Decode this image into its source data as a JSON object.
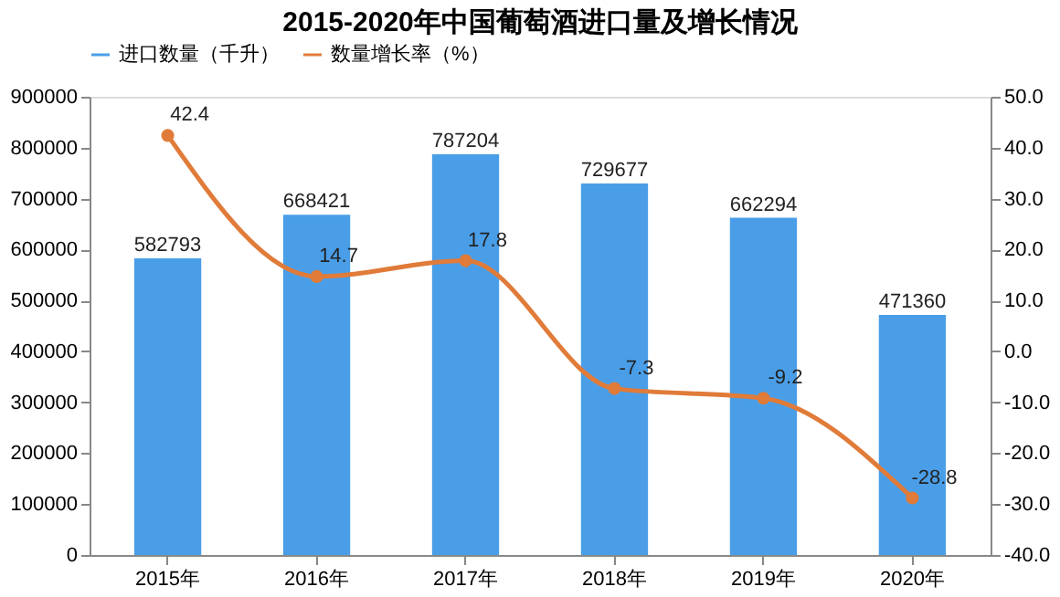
{
  "chart_data": {
    "type": "bar",
    "title": "2015-2020年中国葡萄酒进口量及增长情况",
    "categories": [
      "2015年",
      "2016年",
      "2017年",
      "2018年",
      "2019年",
      "2020年"
    ],
    "series": [
      {
        "name": "进口数量（千升）",
        "color": "#4a9ee8",
        "values": [
          582793,
          668421,
          787204,
          729677,
          662294,
          471360
        ]
      },
      {
        "name": "数量增长率（%）",
        "type": "line",
        "axis": "y2",
        "color": "#e07b39",
        "marker": "circle",
        "values": [
          42.4,
          14.7,
          17.8,
          -7.3,
          -9.2,
          -28.8
        ]
      }
    ],
    "ylim": [
      0,
      900000
    ],
    "yticks": [
      0,
      100000,
      200000,
      300000,
      400000,
      500000,
      600000,
      700000,
      800000,
      900000
    ],
    "y2lim": [
      -40,
      50
    ],
    "y2ticks": [
      {
        "value": -40,
        "label": "-40.0"
      },
      {
        "value": -30,
        "label": "-30.0"
      },
      {
        "value": -20,
        "label": "-20.0"
      },
      {
        "value": -10,
        "label": "-10.0"
      },
      {
        "value": 0,
        "label": "0.0"
      },
      {
        "value": 10,
        "label": "10.0"
      },
      {
        "value": 20,
        "label": "20.0"
      },
      {
        "value": 30,
        "label": "30.0"
      },
      {
        "value": 40,
        "label": "40.0"
      },
      {
        "value": 50,
        "label": "50.0"
      }
    ],
    "data_labels": true,
    "legend": "top",
    "grid": false
  }
}
